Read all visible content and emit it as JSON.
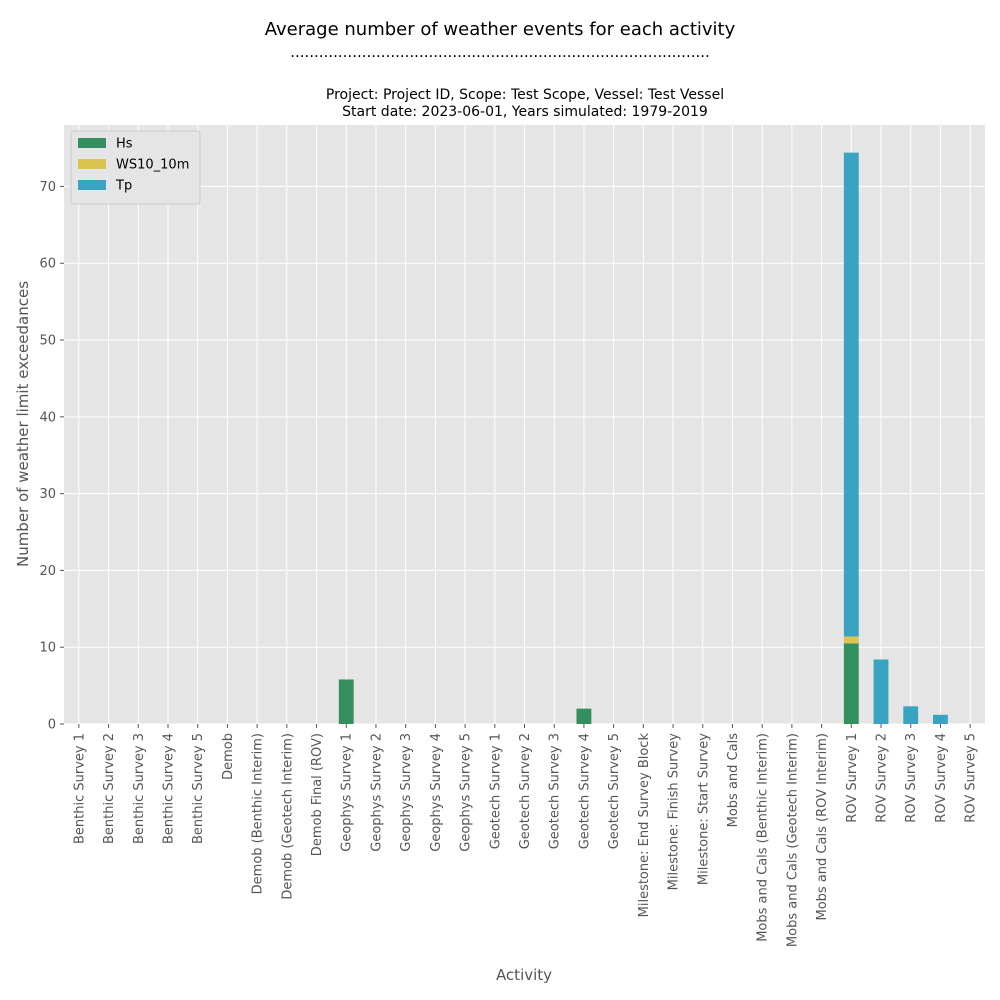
{
  "title": "Average number of weather events for each activity",
  "title_rule": "........................................................................................",
  "subtitle_line1": "Project: Project ID, Scope: Test Scope, Vessel: Test Vessel",
  "subtitle_line2": "Start date: 2023-06-01, Years simulated: 1979-2019",
  "chart_data": {
    "type": "bar",
    "stacked": true,
    "title": "Average number of weather events for each activity",
    "subtitle": "Project: Project ID, Scope: Test Scope, Vessel: Test Vessel / Start date: 2023-06-01, Years simulated: 1979-2019",
    "xlabel": "Activity",
    "ylabel": "Number of weather limit exceedances",
    "ylim": [
      0,
      78
    ],
    "yticks": [
      0,
      10,
      20,
      30,
      40,
      50,
      60,
      70
    ],
    "grid": true,
    "legend_position": "top-left",
    "categories": [
      "Benthic Survey 1",
      "Benthic Survey 2",
      "Benthic Survey 3",
      "Benthic Survey 4",
      "Benthic Survey 5",
      "Demob",
      "Demob (Benthic Interim)",
      "Demob (Geotech Interim)",
      "Demob Final (ROV)",
      "Geophys Survey 1",
      "Geophys Survey 2",
      "Geophys Survey 3",
      "Geophys Survey 4",
      "Geophys Survey 5",
      "Geotech Survey 1",
      "Geotech Survey 2",
      "Geotech Survey 3",
      "Geotech Survey 4",
      "Geotech Survey 5",
      "Milestone: End Survey Block",
      "Milestone: Finish Survey",
      "Milestone: Start Survey",
      "Mobs and Cals",
      "Mobs and Cals (Benthic Interim)",
      "Mobs and Cals (Geotech Interim)",
      "Mobs and Cals (ROV Interim)",
      "ROV Survey 1",
      "ROV Survey 2",
      "ROV Survey 3",
      "ROV Survey 4",
      "ROV Survey 5"
    ],
    "series": [
      {
        "name": "Hs",
        "color": "#348f5f",
        "values": [
          0,
          0,
          0,
          0,
          0,
          0,
          0,
          0,
          0,
          5.8,
          0,
          0,
          0,
          0,
          0,
          0,
          0,
          2.0,
          0,
          0,
          0,
          0,
          0,
          0,
          0,
          0,
          10.5,
          0,
          0,
          0,
          0
        ]
      },
      {
        "name": "WS10_10m",
        "color": "#dbc451",
        "values": [
          0,
          0,
          0,
          0,
          0,
          0,
          0,
          0,
          0,
          0,
          0,
          0,
          0,
          0,
          0,
          0,
          0,
          0,
          0,
          0,
          0,
          0,
          0,
          0,
          0,
          0,
          0.9,
          0,
          0,
          0,
          0
        ]
      },
      {
        "name": "Tp",
        "color": "#3ba3c2",
        "values": [
          0,
          0,
          0,
          0,
          0,
          0,
          0,
          0,
          0,
          0,
          0,
          0,
          0,
          0,
          0,
          0,
          0,
          0,
          0,
          0,
          0,
          0,
          0,
          0,
          0,
          0,
          63.0,
          8.4,
          2.3,
          1.2,
          0
        ]
      }
    ]
  }
}
